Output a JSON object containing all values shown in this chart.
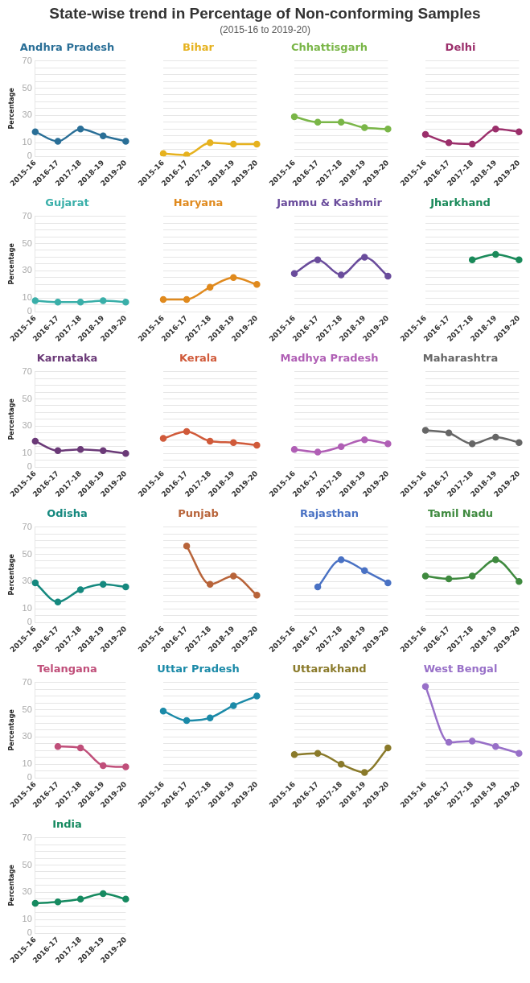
{
  "chart_data": [
    {
      "type": "other",
      "title": "State-wise trend in Percentage of Non-conforming Samples",
      "subtitle": "(2015-16 to 2019-20)"
    },
    {
      "type": "line",
      "title": "Andhra Pradesh",
      "ylabel": "Percentage",
      "categories": [
        "2015-16",
        "2016-17",
        "2017-18",
        "2018-19",
        "2019-20"
      ],
      "series": [
        {
          "color": "#2a6f97",
          "values": [
            18,
            11,
            20,
            15,
            11
          ]
        }
      ],
      "ylim": [
        0,
        70
      ],
      "yticks": [
        0,
        {
          "value": 5,
          "label": null
        },
        10,
        {
          "value": 15,
          "label": null
        },
        {
          "value": 20,
          "label": null
        },
        {
          "value": 25,
          "label": null
        },
        30,
        {
          "value": 35,
          "label": null
        },
        {
          "value": 40,
          "label": null
        },
        {
          "value": 45,
          "label": null
        },
        50,
        {
          "value": 55,
          "label": null
        },
        {
          "value": 60,
          "label": null
        },
        {
          "value": 65,
          "label": null
        },
        70
      ],
      "grid": "y",
      "marker": "circle",
      "line_style": "solid"
    },
    {
      "type": "line",
      "title": "Bihar",
      "categories": [
        "2015-16",
        "2016-17",
        "2017-18",
        "2018-19",
        "2019-20"
      ],
      "series": [
        {
          "color": "#e6b21f",
          "values": [
            2,
            1,
            10,
            9,
            9
          ]
        }
      ],
      "ylim": [
        0,
        70
      ],
      "yticks": [
        0,
        {
          "value": 5,
          "label": null
        },
        10,
        {
          "value": 15,
          "label": null
        },
        {
          "value": 20,
          "label": null
        },
        {
          "value": 25,
          "label": null
        },
        30,
        {
          "value": 35,
          "label": null
        },
        {
          "value": 40,
          "label": null
        },
        {
          "value": 45,
          "label": null
        },
        50,
        {
          "value": 55,
          "label": null
        },
        {
          "value": 60,
          "label": null
        },
        {
          "value": 65,
          "label": null
        },
        70
      ],
      "grid": "y",
      "marker": "circle",
      "line_style": "solid",
      "tick_labels": "x"
    },
    {
      "type": "line",
      "title": "Chhattisgarh",
      "categories": [
        "2015-16",
        "2016-17",
        "2017-18",
        "2018-19",
        "2019-20"
      ],
      "series": [
        {
          "color": "#7ab648",
          "values": [
            29,
            25,
            25,
            21,
            20
          ]
        }
      ],
      "ylim": [
        0,
        70
      ],
      "yticks": [
        0,
        {
          "value": 5,
          "label": null
        },
        10,
        {
          "value": 15,
          "label": null
        },
        {
          "value": 20,
          "label": null
        },
        {
          "value": 25,
          "label": null
        },
        30,
        {
          "value": 35,
          "label": null
        },
        {
          "value": 40,
          "label": null
        },
        {
          "value": 45,
          "label": null
        },
        50,
        {
          "value": 55,
          "label": null
        },
        {
          "value": 60,
          "label": null
        },
        {
          "value": 65,
          "label": null
        },
        70
      ],
      "grid": "y",
      "marker": "circle",
      "line_style": "solid",
      "tick_labels": "x"
    },
    {
      "type": "line",
      "title": "Delhi",
      "categories": [
        "2015-16",
        "2016-17",
        "2017-18",
        "2018-19",
        "2019-20"
      ],
      "series": [
        {
          "color": "#9b2f6b",
          "values": [
            16,
            10,
            9,
            20,
            18
          ]
        }
      ],
      "ylim": [
        0,
        70
      ],
      "yticks": [
        0,
        {
          "value": 5,
          "label": null
        },
        10,
        {
          "value": 15,
          "label": null
        },
        {
          "value": 20,
          "label": null
        },
        {
          "value": 25,
          "label": null
        },
        30,
        {
          "value": 35,
          "label": null
        },
        {
          "value": 40,
          "label": null
        },
        {
          "value": 45,
          "label": null
        },
        50,
        {
          "value": 55,
          "label": null
        },
        {
          "value": 60,
          "label": null
        },
        {
          "value": 65,
          "label": null
        },
        70
      ],
      "grid": "y",
      "marker": "circle",
      "line_style": "solid",
      "tick_labels": "x"
    },
    {
      "type": "line",
      "title": "Gujarat",
      "ylabel": "Percentage",
      "categories": [
        "2015-16",
        "2016-17",
        "2017-18",
        "2018-19",
        "2019-20"
      ],
      "series": [
        {
          "color": "#3aafa9",
          "values": [
            8,
            7,
            7,
            8,
            7
          ]
        }
      ],
      "ylim": [
        0,
        70
      ],
      "yticks": [
        0,
        {
          "value": 5,
          "label": null
        },
        10,
        {
          "value": 15,
          "label": null
        },
        {
          "value": 20,
          "label": null
        },
        {
          "value": 25,
          "label": null
        },
        30,
        {
          "value": 35,
          "label": null
        },
        {
          "value": 40,
          "label": null
        },
        {
          "value": 45,
          "label": null
        },
        50,
        {
          "value": 55,
          "label": null
        },
        {
          "value": 60,
          "label": null
        },
        {
          "value": 65,
          "label": null
        },
        70
      ],
      "grid": "y",
      "marker": "circle",
      "line_style": "solid"
    },
    {
      "type": "line",
      "title": "Haryana",
      "categories": [
        "2015-16",
        "2016-17",
        "2017-18",
        "2018-19",
        "2019-20"
      ],
      "series": [
        {
          "color": "#e08a1e",
          "values": [
            9,
            9,
            18,
            25,
            20
          ]
        }
      ],
      "ylim": [
        0,
        70
      ],
      "yticks": [
        0,
        {
          "value": 5,
          "label": null
        },
        10,
        {
          "value": 15,
          "label": null
        },
        {
          "value": 20,
          "label": null
        },
        {
          "value": 25,
          "label": null
        },
        30,
        {
          "value": 35,
          "label": null
        },
        {
          "value": 40,
          "label": null
        },
        {
          "value": 45,
          "label": null
        },
        50,
        {
          "value": 55,
          "label": null
        },
        {
          "value": 60,
          "label": null
        },
        {
          "value": 65,
          "label": null
        },
        70
      ],
      "grid": "y",
      "marker": "circle",
      "line_style": "solid",
      "tick_labels": "x"
    },
    {
      "type": "line",
      "title": "Jammu & Kashmir",
      "categories": [
        "2015-16",
        "2016-17",
        "2017-18",
        "2018-19",
        "2019-20"
      ],
      "series": [
        {
          "color": "#6a4c9c",
          "values": [
            28,
            38,
            27,
            40,
            26
          ]
        }
      ],
      "ylim": [
        0,
        70
      ],
      "yticks": [
        0,
        {
          "value": 5,
          "label": null
        },
        10,
        {
          "value": 15,
          "label": null
        },
        {
          "value": 20,
          "label": null
        },
        {
          "value": 25,
          "label": null
        },
        30,
        {
          "value": 35,
          "label": null
        },
        {
          "value": 40,
          "label": null
        },
        {
          "value": 45,
          "label": null
        },
        50,
        {
          "value": 55,
          "label": null
        },
        {
          "value": 60,
          "label": null
        },
        {
          "value": 65,
          "label": null
        },
        70
      ],
      "grid": "y",
      "marker": "circle",
      "line_style": "solid",
      "tick_labels": "x"
    },
    {
      "type": "line",
      "title": "Jharkhand",
      "categories": [
        "2015-16",
        "2016-17",
        "2017-18",
        "2018-19",
        "2019-20"
      ],
      "series": [
        {
          "color": "#1a8a5a",
          "values": [
            null,
            null,
            38,
            42,
            38
          ]
        }
      ],
      "ylim": [
        0,
        70
      ],
      "yticks": [
        0,
        {
          "value": 5,
          "label": null
        },
        10,
        {
          "value": 15,
          "label": null
        },
        {
          "value": 20,
          "label": null
        },
        {
          "value": 25,
          "label": null
        },
        30,
        {
          "value": 35,
          "label": null
        },
        {
          "value": 40,
          "label": null
        },
        {
          "value": 45,
          "label": null
        },
        50,
        {
          "value": 55,
          "label": null
        },
        {
          "value": 60,
          "label": null
        },
        {
          "value": 65,
          "label": null
        },
        70
      ],
      "grid": "y",
      "marker": "circle",
      "line_style": "solid",
      "tick_labels": "x"
    },
    {
      "type": "line",
      "title": "Karnataka",
      "ylabel": "Percentage",
      "categories": [
        "2015-16",
        "2016-17",
        "2017-18",
        "2018-19",
        "2019-20"
      ],
      "series": [
        {
          "color": "#6b3a78",
          "values": [
            19,
            12,
            13,
            12,
            10
          ]
        }
      ],
      "ylim": [
        0,
        70
      ],
      "yticks": [
        0,
        {
          "value": 5,
          "label": null
        },
        10,
        {
          "value": 15,
          "label": null
        },
        {
          "value": 20,
          "label": null
        },
        {
          "value": 25,
          "label": null
        },
        30,
        {
          "value": 35,
          "label": null
        },
        {
          "value": 40,
          "label": null
        },
        {
          "value": 45,
          "label": null
        },
        50,
        {
          "value": 55,
          "label": null
        },
        {
          "value": 60,
          "label": null
        },
        {
          "value": 65,
          "label": null
        },
        70
      ],
      "grid": "y",
      "marker": "circle",
      "line_style": "solid"
    },
    {
      "type": "line",
      "title": "Kerala",
      "categories": [
        "2015-16",
        "2016-17",
        "2017-18",
        "2018-19",
        "2019-20"
      ],
      "series": [
        {
          "color": "#d05a3a",
          "values": [
            21,
            26,
            19,
            18,
            16
          ]
        }
      ],
      "ylim": [
        0,
        70
      ],
      "yticks": [
        0,
        {
          "value": 5,
          "label": null
        },
        10,
        {
          "value": 15,
          "label": null
        },
        {
          "value": 20,
          "label": null
        },
        {
          "value": 25,
          "label": null
        },
        30,
        {
          "value": 35,
          "label": null
        },
        {
          "value": 40,
          "label": null
        },
        {
          "value": 45,
          "label": null
        },
        50,
        {
          "value": 55,
          "label": null
        },
        {
          "value": 60,
          "label": null
        },
        {
          "value": 65,
          "label": null
        },
        70
      ],
      "grid": "y",
      "marker": "circle",
      "line_style": "solid",
      "tick_labels": "x"
    },
    {
      "type": "line",
      "title": "Madhya Pradesh",
      "categories": [
        "2015-16",
        "2016-17",
        "2017-18",
        "2018-19",
        "2019-20"
      ],
      "series": [
        {
          "color": "#b05fb5",
          "values": [
            13,
            11,
            15,
            20,
            17
          ]
        }
      ],
      "ylim": [
        0,
        70
      ],
      "yticks": [
        0,
        {
          "value": 5,
          "label": null
        },
        10,
        {
          "value": 15,
          "label": null
        },
        {
          "value": 20,
          "label": null
        },
        {
          "value": 25,
          "label": null
        },
        30,
        {
          "value": 35,
          "label": null
        },
        {
          "value": 40,
          "label": null
        },
        {
          "value": 45,
          "label": null
        },
        50,
        {
          "value": 55,
          "label": null
        },
        {
          "value": 60,
          "label": null
        },
        {
          "value": 65,
          "label": null
        },
        70
      ],
      "grid": "y",
      "marker": "circle",
      "line_style": "solid",
      "tick_labels": "x"
    },
    {
      "type": "line",
      "title": "Maharashtra",
      "categories": [
        "2015-16",
        "2016-17",
        "2017-18",
        "2018-19",
        "2019-20"
      ],
      "series": [
        {
          "color": "#666666",
          "values": [
            27,
            25,
            17,
            22,
            18
          ]
        }
      ],
      "ylim": [
        0,
        70
      ],
      "yticks": [
        0,
        {
          "value": 5,
          "label": null
        },
        10,
        {
          "value": 15,
          "label": null
        },
        {
          "value": 20,
          "label": null
        },
        {
          "value": 25,
          "label": null
        },
        30,
        {
          "value": 35,
          "label": null
        },
        {
          "value": 40,
          "label": null
        },
        {
          "value": 45,
          "label": null
        },
        50,
        {
          "value": 55,
          "label": null
        },
        {
          "value": 60,
          "label": null
        },
        {
          "value": 65,
          "label": null
        },
        70
      ],
      "grid": "y",
      "marker": "circle",
      "line_style": "solid",
      "tick_labels": "x"
    },
    {
      "type": "line",
      "title": "Odisha",
      "ylabel": "Percentage",
      "categories": [
        "2015-16",
        "2016-17",
        "2017-18",
        "2018-19",
        "2019-20"
      ],
      "series": [
        {
          "color": "#16897f",
          "values": [
            29,
            15,
            24,
            28,
            26
          ]
        }
      ],
      "ylim": [
        0,
        70
      ],
      "yticks": [
        0,
        {
          "value": 5,
          "label": null
        },
        10,
        {
          "value": 15,
          "label": null
        },
        {
          "value": 20,
          "label": null
        },
        {
          "value": 25,
          "label": null
        },
        30,
        {
          "value": 35,
          "label": null
        },
        {
          "value": 40,
          "label": null
        },
        {
          "value": 45,
          "label": null
        },
        50,
        {
          "value": 55,
          "label": null
        },
        {
          "value": 60,
          "label": null
        },
        {
          "value": 65,
          "label": null
        },
        70
      ],
      "grid": "y",
      "marker": "circle",
      "line_style": "solid"
    },
    {
      "type": "line",
      "title": "Punjab",
      "categories": [
        "2015-16",
        "2016-17",
        "2017-18",
        "2018-19",
        "2019-20"
      ],
      "series": [
        {
          "color": "#b8643a",
          "values": [
            null,
            56,
            28,
            34,
            20
          ]
        }
      ],
      "ylim": [
        0,
        70
      ],
      "yticks": [
        0,
        {
          "value": 5,
          "label": null
        },
        10,
        {
          "value": 15,
          "label": null
        },
        {
          "value": 20,
          "label": null
        },
        {
          "value": 25,
          "label": null
        },
        30,
        {
          "value": 35,
          "label": null
        },
        {
          "value": 40,
          "label": null
        },
        {
          "value": 45,
          "label": null
        },
        50,
        {
          "value": 55,
          "label": null
        },
        {
          "value": 60,
          "label": null
        },
        {
          "value": 65,
          "label": null
        },
        70
      ],
      "grid": "y",
      "marker": "circle",
      "line_style": "solid",
      "tick_labels": "x"
    },
    {
      "type": "line",
      "title": "Rajasthan",
      "categories": [
        "2015-16",
        "2016-17",
        "2017-18",
        "2018-19",
        "2019-20"
      ],
      "series": [
        {
          "color": "#4a72c4",
          "values": [
            null,
            26,
            46,
            38,
            29
          ]
        }
      ],
      "ylim": [
        0,
        70
      ],
      "yticks": [
        0,
        {
          "value": 5,
          "label": null
        },
        10,
        {
          "value": 15,
          "label": null
        },
        {
          "value": 20,
          "label": null
        },
        {
          "value": 25,
          "label": null
        },
        30,
        {
          "value": 35,
          "label": null
        },
        {
          "value": 40,
          "label": null
        },
        {
          "value": 45,
          "label": null
        },
        50,
        {
          "value": 55,
          "label": null
        },
        {
          "value": 60,
          "label": null
        },
        {
          "value": 65,
          "label": null
        },
        70
      ],
      "grid": "y",
      "marker": "circle",
      "line_style": "solid",
      "tick_labels": "x"
    },
    {
      "type": "line",
      "title": "Tamil Nadu",
      "categories": [
        "2015-16",
        "2016-17",
        "2017-18",
        "2018-19",
        "2019-20"
      ],
      "series": [
        {
          "color": "#3f8a3f",
          "values": [
            34,
            32,
            34,
            46,
            30
          ]
        }
      ],
      "ylim": [
        0,
        70
      ],
      "yticks": [
        0,
        {
          "value": 5,
          "label": null
        },
        10,
        {
          "value": 15,
          "label": null
        },
        {
          "value": 20,
          "label": null
        },
        {
          "value": 25,
          "label": null
        },
        30,
        {
          "value": 35,
          "label": null
        },
        {
          "value": 40,
          "label": null
        },
        {
          "value": 45,
          "label": null
        },
        50,
        {
          "value": 55,
          "label": null
        },
        {
          "value": 60,
          "label": null
        },
        {
          "value": 65,
          "label": null
        },
        70
      ],
      "grid": "y",
      "marker": "circle",
      "line_style": "solid",
      "tick_labels": "x"
    },
    {
      "type": "line",
      "title": "Telangana",
      "ylabel": "Percentage",
      "categories": [
        "2015-16",
        "2016-17",
        "2017-18",
        "2018-19",
        "2019-20"
      ],
      "series": [
        {
          "color": "#c04f7a",
          "values": [
            null,
            23,
            22,
            9,
            8
          ]
        }
      ],
      "ylim": [
        0,
        70
      ],
      "yticks": [
        0,
        {
          "value": 5,
          "label": null
        },
        10,
        {
          "value": 15,
          "label": null
        },
        {
          "value": 20,
          "label": null
        },
        {
          "value": 25,
          "label": null
        },
        30,
        {
          "value": 35,
          "label": null
        },
        {
          "value": 40,
          "label": null
        },
        {
          "value": 45,
          "label": null
        },
        50,
        {
          "value": 55,
          "label": null
        },
        {
          "value": 60,
          "label": null
        },
        {
          "value": 65,
          "label": null
        },
        70
      ],
      "grid": "y",
      "marker": "circle",
      "line_style": "solid"
    },
    {
      "type": "line",
      "title": "Uttar Pradesh",
      "categories": [
        "2015-16",
        "2016-17",
        "2017-18",
        "2018-19",
        "2019-20"
      ],
      "series": [
        {
          "color": "#1b8aa8",
          "values": [
            49,
            42,
            44,
            53,
            60
          ]
        }
      ],
      "ylim": [
        0,
        70
      ],
      "yticks": [
        0,
        {
          "value": 5,
          "label": null
        },
        10,
        {
          "value": 15,
          "label": null
        },
        {
          "value": 20,
          "label": null
        },
        {
          "value": 25,
          "label": null
        },
        30,
        {
          "value": 35,
          "label": null
        },
        {
          "value": 40,
          "label": null
        },
        {
          "value": 45,
          "label": null
        },
        50,
        {
          "value": 55,
          "label": null
        },
        {
          "value": 60,
          "label": null
        },
        {
          "value": 65,
          "label": null
        },
        70
      ],
      "grid": "y",
      "marker": "circle",
      "line_style": "solid",
      "tick_labels": "x"
    },
    {
      "type": "line",
      "title": "Uttarakhand",
      "categories": [
        "2015-16",
        "2016-17",
        "2017-18",
        "2018-19",
        "2019-20"
      ],
      "series": [
        {
          "color": "#8a7a2a",
          "values": [
            17,
            18,
            10,
            4,
            22
          ]
        }
      ],
      "ylim": [
        0,
        70
      ],
      "yticks": [
        0,
        {
          "value": 5,
          "label": null
        },
        10,
        {
          "value": 15,
          "label": null
        },
        {
          "value": 20,
          "label": null
        },
        {
          "value": 25,
          "label": null
        },
        30,
        {
          "value": 35,
          "label": null
        },
        {
          "value": 40,
          "label": null
        },
        {
          "value": 45,
          "label": null
        },
        50,
        {
          "value": 55,
          "label": null
        },
        {
          "value": 60,
          "label": null
        },
        {
          "value": 65,
          "label": null
        },
        70
      ],
      "grid": "y",
      "marker": "circle",
      "line_style": "solid",
      "tick_labels": "x"
    },
    {
      "type": "line",
      "title": "West Bengal",
      "categories": [
        "2015-16",
        "2016-17",
        "2017-18",
        "2018-19",
        "2019-20"
      ],
      "series": [
        {
          "color": "#9870c8",
          "values": [
            67,
            26,
            27,
            23,
            18
          ]
        }
      ],
      "ylim": [
        0,
        70
      ],
      "yticks": [
        0,
        {
          "value": 5,
          "label": null
        },
        10,
        {
          "value": 15,
          "label": null
        },
        {
          "value": 20,
          "label": null
        },
        {
          "value": 25,
          "label": null
        },
        30,
        {
          "value": 35,
          "label": null
        },
        {
          "value": 40,
          "label": null
        },
        {
          "value": 45,
          "label": null
        },
        50,
        {
          "value": 55,
          "label": null
        },
        {
          "value": 60,
          "label": null
        },
        {
          "value": 65,
          "label": null
        },
        70
      ],
      "grid": "y",
      "marker": "circle",
      "line_style": "solid",
      "tick_labels": "x"
    },
    {
      "type": "line",
      "title": "India",
      "ylabel": "Percentage",
      "categories": [
        "2015-16",
        "2016-17",
        "2017-18",
        "2018-19",
        "2019-20"
      ],
      "series": [
        {
          "color": "#168a60",
          "values": [
            22,
            23,
            25,
            29,
            25
          ]
        }
      ],
      "ylim": [
        0,
        70
      ],
      "yticks": [
        0,
        {
          "value": 5,
          "label": null
        },
        10,
        {
          "value": 15,
          "label": null
        },
        {
          "value": 20,
          "label": null
        },
        {
          "value": 25,
          "label": null
        },
        30,
        {
          "value": 35,
          "label": null
        },
        {
          "value": 40,
          "label": null
        },
        {
          "value": 45,
          "label": null
        },
        50,
        {
          "value": 55,
          "label": null
        },
        {
          "value": 60,
          "label": null
        },
        {
          "value": 65,
          "label": null
        },
        70
      ],
      "grid": "y",
      "marker": "circle",
      "line_style": "solid"
    }
  ]
}
